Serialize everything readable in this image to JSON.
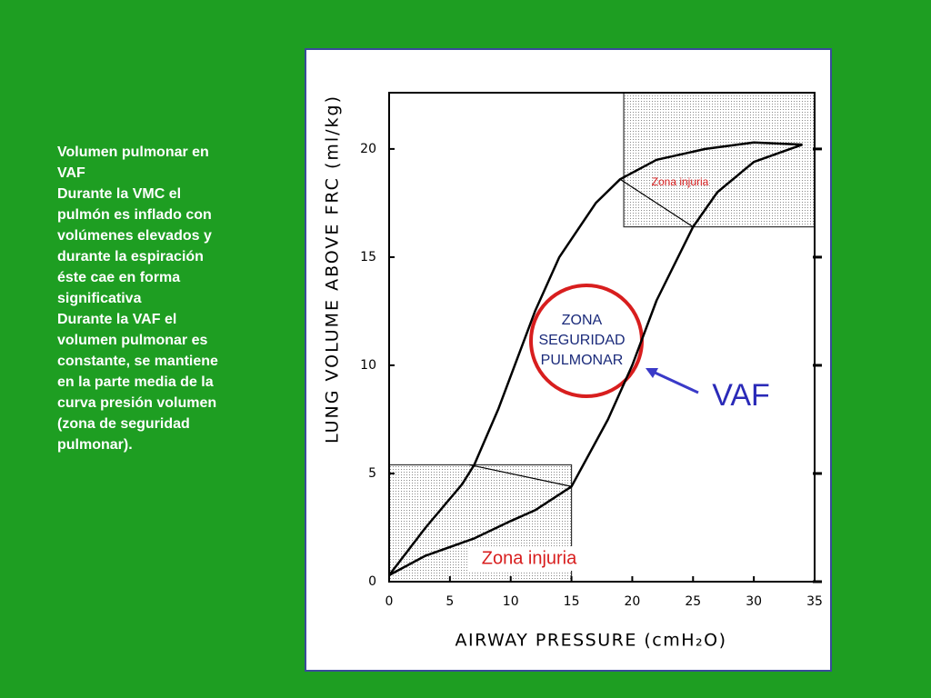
{
  "slide_text": [
    "Volumen pulmonar en VAF",
    "Durante la VMC el pulmón es inflado con volúmenes elevados y durante la espiración éste cae en forma significativa",
    "Durante la VAF el volumen pulmonar es constante, se mantiene en la parte media de la curva presión volumen (zona de seguridad pulmonar)."
  ],
  "chart_data": {
    "type": "line",
    "x_label": "AIRWAY PRESSURE (cmH₂O)",
    "y_label": "LUNG VOLUME ABOVE FRC (ml/kg)",
    "xlim": [
      0,
      35
    ],
    "ylim": [
      0,
      22.6
    ],
    "xticks": [
      0,
      5,
      10,
      15,
      20,
      25,
      30,
      35
    ],
    "yticks": [
      0,
      5,
      10,
      15,
      20
    ],
    "series": [
      {
        "color": "#000000",
        "x": [
          0,
          3,
          6,
          7,
          9,
          12,
          14,
          17,
          19,
          22,
          26,
          30,
          34
        ],
        "values": [
          0.3,
          2.5,
          4.5,
          5.4,
          8,
          12.5,
          15,
          17.5,
          18.6,
          19.5,
          20,
          20.3,
          20.2
        ]
      },
      {
        "color": "#000000",
        "x": [
          0,
          3,
          7,
          10,
          12,
          15,
          18,
          20,
          22,
          25,
          27,
          30,
          34
        ],
        "values": [
          0.3,
          1.2,
          2,
          2.8,
          3.3,
          4.4,
          7.5,
          10,
          13,
          16.4,
          18,
          19.4,
          20.2
        ]
      }
    ],
    "regions": [
      {
        "xlim": [
          19.3,
          35
        ],
        "ylim": [
          16.4,
          22.6
        ],
        "boundary": {
          "x": [
            19,
            25
          ],
          "y": [
            18.6,
            16.4
          ]
        }
      },
      {
        "xlim": [
          0,
          15
        ],
        "ylim": [
          0,
          5.4
        ],
        "boundary": {
          "x": [
            6.6,
            15
          ],
          "y": [
            5.4,
            4.4
          ]
        }
      }
    ],
    "annotations": [
      "Zona injuria",
      "Zona injuria",
      "ZONA SEGURIDAD PULMONAR",
      "VAF"
    ]
  }
}
